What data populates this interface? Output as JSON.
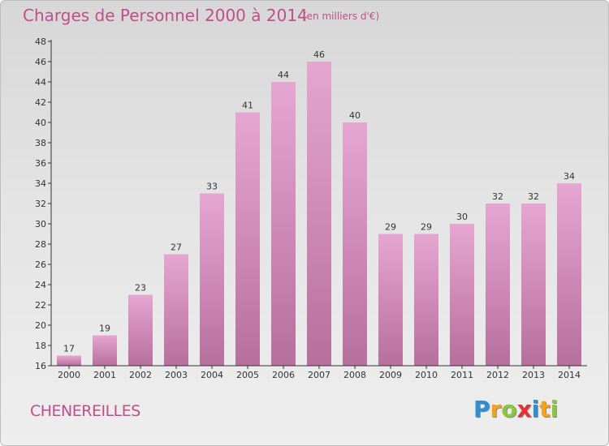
{
  "title": "Charges de Personnel 2000 à 2014",
  "subtitle": "(en milliers d'€)",
  "commune": "CHENEREILLES",
  "logo": {
    "letters": [
      {
        "ch": "P",
        "color": "#2f8fd6"
      },
      {
        "ch": "r",
        "color": "#f5a21b"
      },
      {
        "ch": "o",
        "color": "#8cc63f"
      },
      {
        "ch": "x",
        "color": "#e8312f"
      },
      {
        "ch": "i",
        "color": "#2f8fd6"
      },
      {
        "ch": "t",
        "color": "#f5a21b"
      },
      {
        "ch": "i",
        "color": "#8cc63f"
      }
    ]
  },
  "colors": {
    "bar_top": "#e6a6d2",
    "bar_bottom": "#b76f9c",
    "text": "#c04e8a",
    "axis": "#333333"
  },
  "chart_data": {
    "type": "bar",
    "categories": [
      "2000",
      "2001",
      "2002",
      "2003",
      "2004",
      "2005",
      "2006",
      "2007",
      "2008",
      "2009",
      "2010",
      "2011",
      "2012",
      "2013",
      "2014"
    ],
    "values": [
      17,
      19,
      23,
      27,
      33,
      41,
      44,
      46,
      40,
      29,
      29,
      30,
      32,
      32,
      34
    ],
    "ylim": [
      16,
      48
    ],
    "yticks": [
      16,
      18,
      20,
      22,
      24,
      26,
      28,
      30,
      32,
      34,
      36,
      38,
      40,
      42,
      44,
      46,
      48
    ],
    "grid": false,
    "data_labels": true
  }
}
